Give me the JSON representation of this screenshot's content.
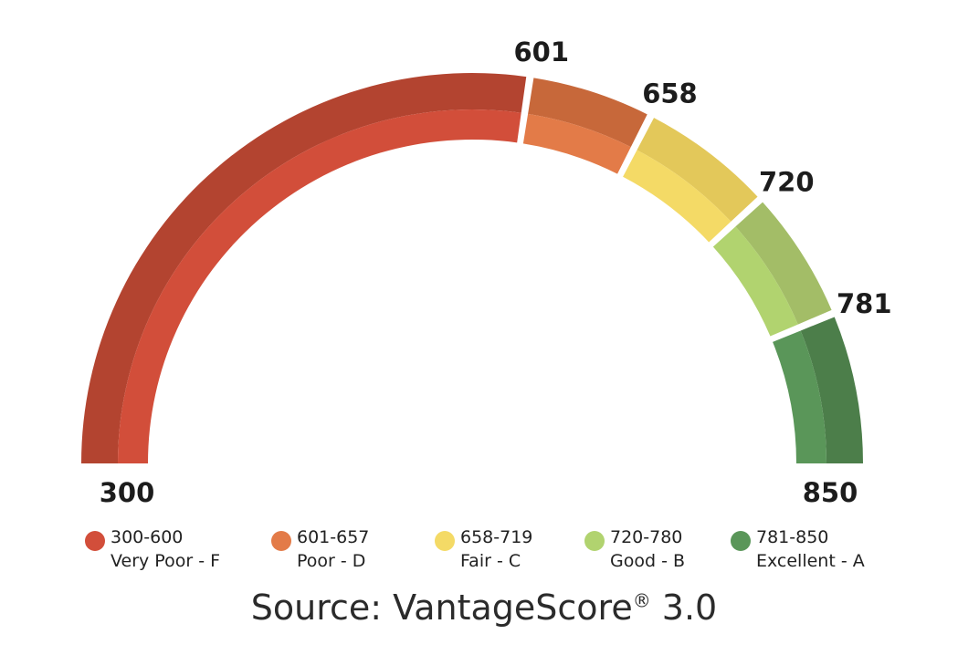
{
  "chart_data": {
    "type": "gauge",
    "min": 300,
    "max": 850,
    "segments": [
      {
        "start": 300,
        "end": 600,
        "range_label": "300-600",
        "grade_label": "Very Poor - F",
        "outer_color": "#b34430",
        "inner_color": "#d24e3a",
        "dot_color": "#d24e3a"
      },
      {
        "start": 601,
        "end": 657,
        "range_label": "601-657",
        "grade_label": "Poor - D",
        "outer_color": "#c7683a",
        "inner_color": "#e37b48",
        "dot_color": "#e37b48"
      },
      {
        "start": 658,
        "end": 719,
        "range_label": "658-719",
        "grade_label": "Fair - C",
        "outer_color": "#e3c85a",
        "inner_color": "#f4da66",
        "dot_color": "#f4da66"
      },
      {
        "start": 720,
        "end": 780,
        "range_label": "720-780",
        "grade_label": "Good - B",
        "outer_color": "#a3bd67",
        "inner_color": "#b1d36f",
        "dot_color": "#b1d36f"
      },
      {
        "start": 781,
        "end": 850,
        "range_label": "781-850",
        "grade_label": "Excellent - A",
        "outer_color": "#4c7e4a",
        "inner_color": "#5a9659",
        "dot_color": "#5a9659"
      }
    ],
    "tick_labels": [
      "300",
      "601",
      "658",
      "720",
      "781",
      "850"
    ]
  },
  "source": {
    "prefix": "Source: VantageScore",
    "registered": "®",
    "suffix": " 3.0"
  }
}
